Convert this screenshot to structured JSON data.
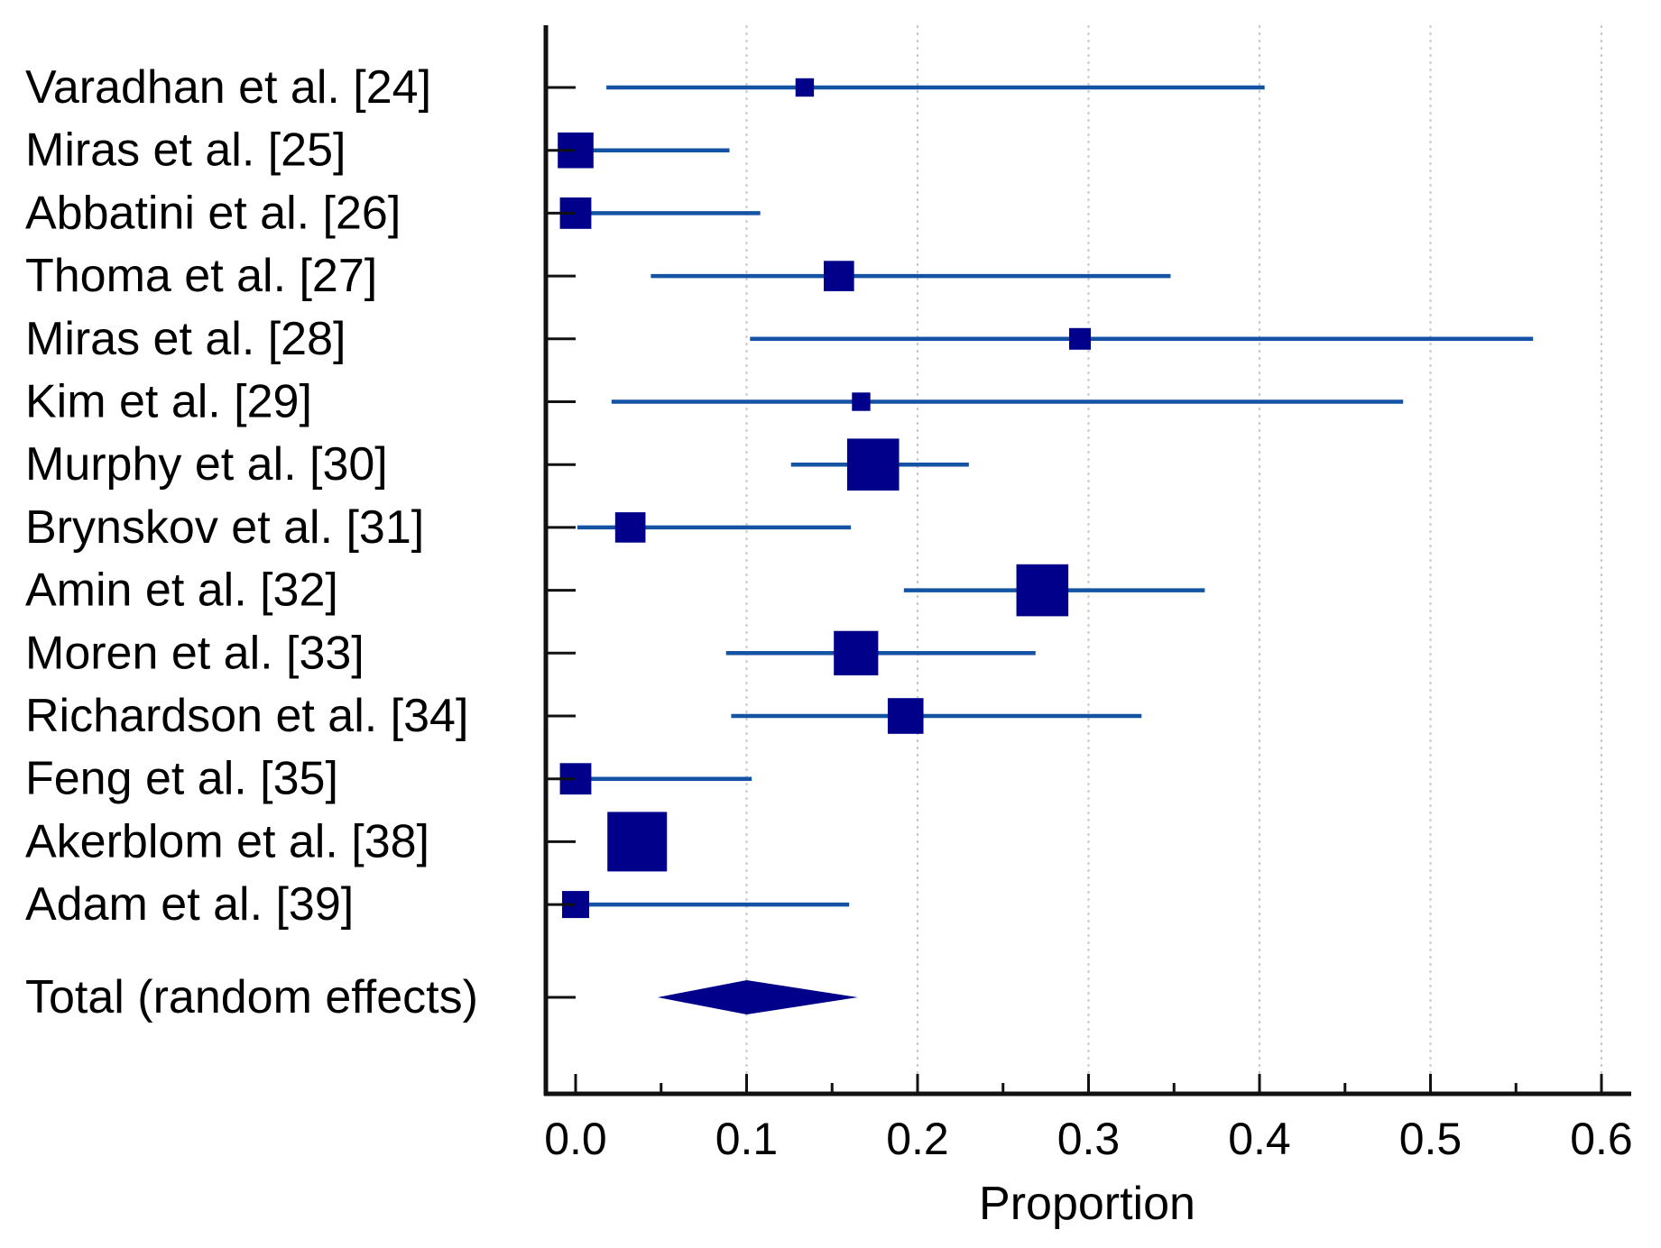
{
  "colors": {
    "ci_line": "#1452a4",
    "marker": "#00008b",
    "axis": "#111111",
    "grid": "#c8c8c8"
  },
  "chart_data": {
    "type": "forest",
    "xlabel": "Proportion",
    "xlim": [
      -0.018,
      0.615
    ],
    "xticks": [
      0.0,
      0.1,
      0.2,
      0.3,
      0.4,
      0.5,
      0.6
    ],
    "xtick_labels": [
      "0.0",
      "0.1",
      "0.2",
      "0.3",
      "0.4",
      "0.5",
      "0.6"
    ],
    "grid": "vertical dotted",
    "studies": [
      {
        "label": "Varadhan et al. [24]",
        "estimate": 0.134,
        "lower": 0.018,
        "upper": 0.403,
        "weight": 1.7
      },
      {
        "label": "Miras et al. [25]",
        "estimate": 0.0,
        "lower": 0.0,
        "upper": 0.09,
        "weight": 3.3
      },
      {
        "label": "Abbatini et al. [26]",
        "estimate": 0.0,
        "lower": 0.0,
        "upper": 0.108,
        "weight": 2.9
      },
      {
        "label": "Thoma et al. [27]",
        "estimate": 0.154,
        "lower": 0.044,
        "upper": 0.348,
        "weight": 2.8
      },
      {
        "label": "Miras et al. [28]",
        "estimate": 0.295,
        "lower": 0.102,
        "upper": 0.56,
        "weight": 2.0
      },
      {
        "label": "Kim et al. [29]",
        "estimate": 0.167,
        "lower": 0.021,
        "upper": 0.484,
        "weight": 1.7
      },
      {
        "label": "Murphy et al. [30]",
        "estimate": 0.174,
        "lower": 0.126,
        "upper": 0.23,
        "weight": 4.8
      },
      {
        "label": "Brynskov et al. [31]",
        "estimate": 0.032,
        "lower": 0.001,
        "upper": 0.161,
        "weight": 2.8
      },
      {
        "label": "Amin et al. [32]",
        "estimate": 0.273,
        "lower": 0.192,
        "upper": 0.368,
        "weight": 4.8
      },
      {
        "label": "Moren et al. [33]",
        "estimate": 0.164,
        "lower": 0.088,
        "upper": 0.269,
        "weight": 4.1
      },
      {
        "label": "Richardson et al. [34]",
        "estimate": 0.193,
        "lower": 0.091,
        "upper": 0.331,
        "weight": 3.3
      },
      {
        "label": "Feng et al. [35]",
        "estimate": 0.0,
        "lower": 0.0,
        "upper": 0.103,
        "weight": 2.9
      },
      {
        "label": "Akerblom et al. [38]",
        "estimate": 0.036,
        "lower": 0.036,
        "upper": 0.036,
        "weight": 5.5
      },
      {
        "label": "Adam et al. [39]",
        "estimate": 0.0,
        "lower": 0.0,
        "upper": 0.16,
        "weight": 2.5
      }
    ],
    "total": {
      "label": "Total (random effects)",
      "estimate": 0.1,
      "lower": 0.048,
      "upper": 0.165
    }
  }
}
